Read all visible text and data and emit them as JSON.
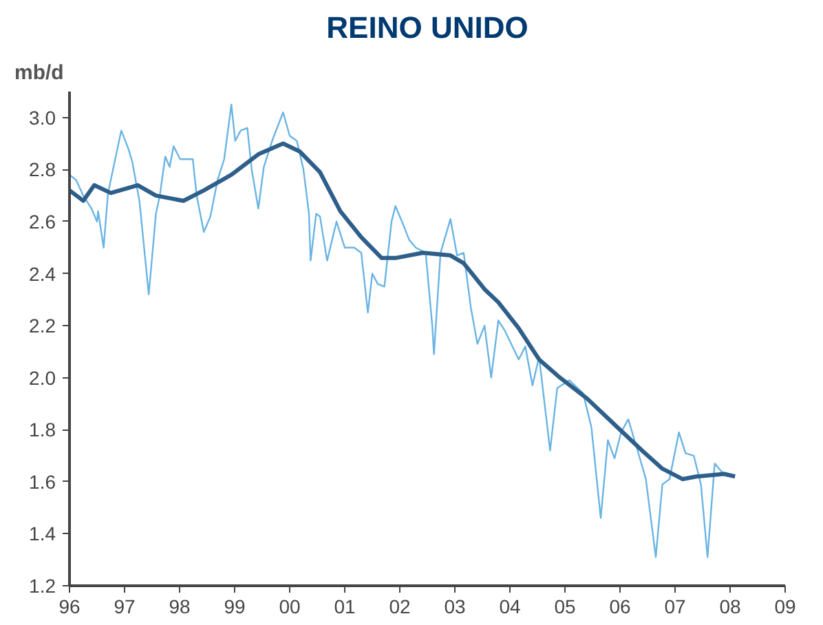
{
  "chart_data": {
    "type": "line",
    "title": "REINO UNIDO",
    "ylabel": "mb/d",
    "xlim": [
      1996,
      2009
    ],
    "xticks": [
      {
        "value": 1996,
        "label": "96"
      },
      {
        "value": 1997,
        "label": "97"
      },
      {
        "value": 1998,
        "label": "98"
      },
      {
        "value": 1999,
        "label": "99"
      },
      {
        "value": 2000,
        "label": "00"
      },
      {
        "value": 2001,
        "label": "01"
      },
      {
        "value": 2002,
        "label": "02"
      },
      {
        "value": 2003,
        "label": "03"
      },
      {
        "value": 2004,
        "label": "04"
      },
      {
        "value": 2005,
        "label": "05"
      },
      {
        "value": 2006,
        "label": "06"
      },
      {
        "value": 2007,
        "label": "07"
      },
      {
        "value": 2008,
        "label": "08"
      },
      {
        "value": 2009,
        "label": "09"
      }
    ],
    "ylim": [
      1.2,
      3.1
    ],
    "yticks": [
      1.2,
      1.4,
      1.6,
      1.8,
      {
        "value": 2,
        "label": "2.0"
      },
      2.2,
      2.4,
      2.6,
      2.8,
      {
        "value": 3,
        "label": "3.0"
      }
    ],
    "grid": false,
    "series": [
      {
        "color": "#6ab4e4",
        "x": [
          1996.0,
          1996.12,
          1996.25,
          1996.4,
          1996.5,
          1996.52,
          1996.62,
          1996.7,
          1996.82,
          1996.94,
          1997.07,
          1997.14,
          1997.27,
          1997.44,
          1997.57,
          1997.64,
          1997.74,
          1997.82,
          1997.89,
          1998.01,
          1998.24,
          1998.31,
          1998.44,
          1998.56,
          1998.69,
          1998.81,
          1998.94,
          1999.01,
          1999.11,
          1999.23,
          1999.31,
          1999.43,
          1999.53,
          1999.68,
          1999.88,
          2000.0,
          2000.13,
          2000.25,
          2000.35,
          2000.38,
          2000.48,
          2000.55,
          2000.68,
          2000.85,
          2001.0,
          2001.17,
          2001.3,
          2001.42,
          2001.5,
          2001.6,
          2001.72,
          2001.85,
          2001.92,
          2002.04,
          2002.17,
          2002.29,
          2002.47,
          2002.59,
          2002.62,
          2002.74,
          2002.92,
          2003.04,
          2003.16,
          2003.29,
          2003.41,
          2003.54,
          2003.66,
          2003.79,
          2003.91,
          2004.16,
          2004.28,
          2004.41,
          2004.53,
          2004.73,
          2004.86,
          2005.08,
          2005.33,
          2005.48,
          2005.65,
          2005.78,
          2005.9,
          2006.02,
          2006.15,
          2006.32,
          2006.47,
          2006.65,
          2006.77,
          2006.9,
          2007.07,
          2007.19,
          2007.34,
          2007.47,
          2007.59,
          2007.72,
          2007.84,
          2007.96
        ],
        "values": [
          2.78,
          2.76,
          2.7,
          2.65,
          2.6,
          2.64,
          2.5,
          2.71,
          2.83,
          2.95,
          2.88,
          2.83,
          2.68,
          2.32,
          2.63,
          2.7,
          2.85,
          2.81,
          2.89,
          2.84,
          2.84,
          2.7,
          2.56,
          2.62,
          2.76,
          2.84,
          3.05,
          2.91,
          2.95,
          2.96,
          2.8,
          2.65,
          2.81,
          2.91,
          3.02,
          2.93,
          2.91,
          2.8,
          2.63,
          2.45,
          2.63,
          2.62,
          2.45,
          2.6,
          2.5,
          2.5,
          2.48,
          2.25,
          2.4,
          2.36,
          2.35,
          2.6,
          2.66,
          2.6,
          2.53,
          2.5,
          2.48,
          2.2,
          2.09,
          2.48,
          2.61,
          2.47,
          2.48,
          2.27,
          2.13,
          2.2,
          2.0,
          2.22,
          2.18,
          2.07,
          2.12,
          1.97,
          2.08,
          1.72,
          1.96,
          1.99,
          1.94,
          1.81,
          1.46,
          1.76,
          1.69,
          1.79,
          1.84,
          1.72,
          1.61,
          1.31,
          1.59,
          1.61,
          1.79,
          1.71,
          1.7,
          1.59,
          1.31,
          1.67,
          1.64,
          1.62
        ]
      },
      {
        "color": "#2e5f8a",
        "x": [
          1996.0,
          1996.25,
          1996.45,
          1996.75,
          1997.24,
          1997.57,
          1998.07,
          1998.44,
          1998.94,
          1999.44,
          1999.88,
          2000.18,
          2000.55,
          2000.92,
          2001.3,
          2001.67,
          2001.92,
          2002.42,
          2002.92,
          2003.16,
          2003.54,
          2003.79,
          2004.16,
          2004.53,
          2004.91,
          2005.4,
          2005.9,
          2006.4,
          2006.77,
          2007.14,
          2007.39,
          2007.89,
          2008.09
        ],
        "values": [
          2.72,
          2.68,
          2.74,
          2.71,
          2.74,
          2.7,
          2.68,
          2.72,
          2.78,
          2.86,
          2.9,
          2.87,
          2.79,
          2.64,
          2.54,
          2.46,
          2.46,
          2.48,
          2.47,
          2.44,
          2.34,
          2.29,
          2.19,
          2.07,
          2.0,
          1.92,
          1.82,
          1.72,
          1.65,
          1.61,
          1.62,
          1.63,
          1.62
        ]
      }
    ]
  }
}
